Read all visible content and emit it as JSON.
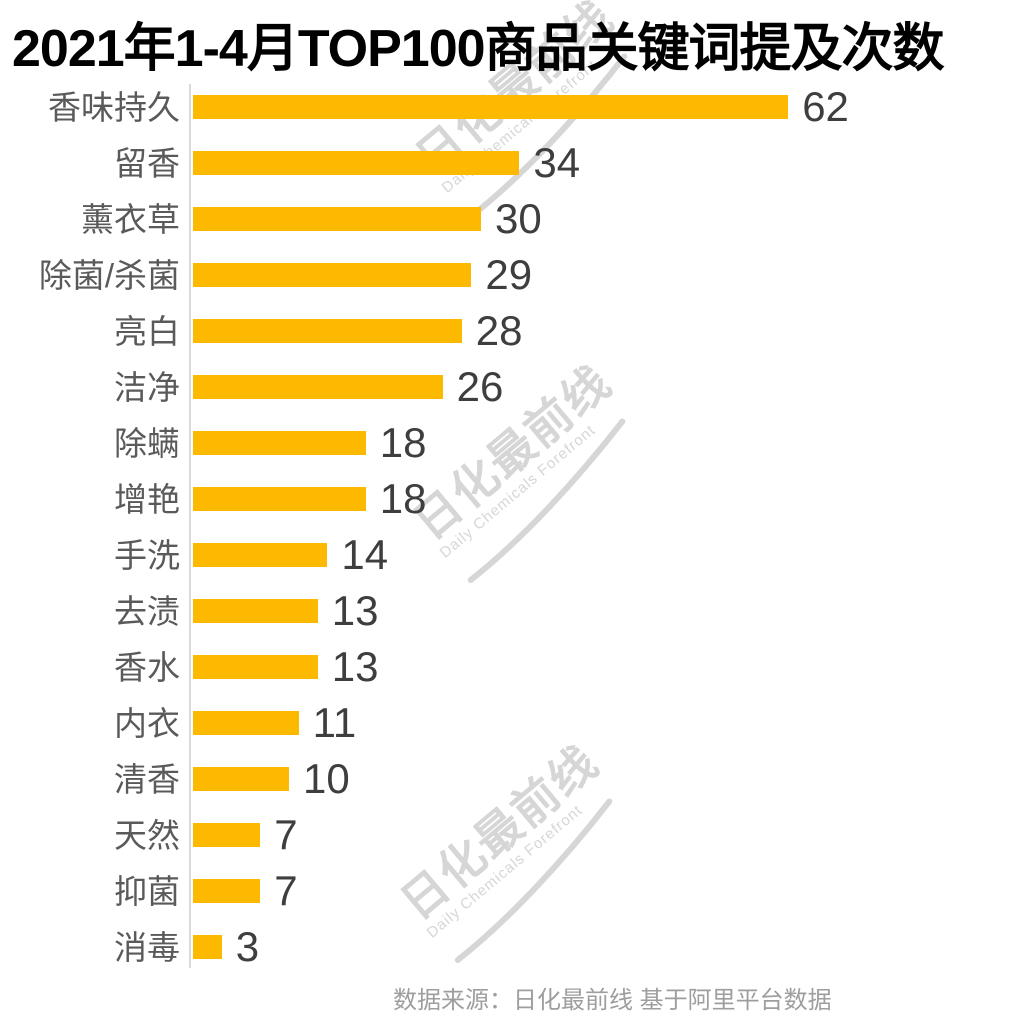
{
  "title": "2021年1-4月TOP100商品关键词提及次数",
  "chart_data": {
    "type": "bar",
    "orientation": "horizontal",
    "title": "2021年1-4月TOP100商品关键词提及次数",
    "categories": [
      "香味持久",
      "留香",
      "薰衣草",
      "除菌/杀菌",
      "亮白",
      "洁净",
      "除螨",
      "增艳",
      "手洗",
      "去渍",
      "香水",
      "内衣",
      "清香",
      "天然",
      "抑菌",
      "消毒"
    ],
    "values": [
      62,
      34,
      30,
      29,
      28,
      26,
      18,
      18,
      14,
      13,
      13,
      11,
      10,
      7,
      7,
      3
    ],
    "value_labels_shown": true,
    "xlim": [
      0,
      64
    ],
    "grid": false,
    "legend": false,
    "bar_color": "#FCB900",
    "axis_line_color": "#D9D9D9"
  },
  "watermark": {
    "line1": "日化最前线",
    "line2": "Daily Chemicals Forefront"
  },
  "footer": {
    "source_label": "数据来源：日化最前线 基于阿里平台数据"
  },
  "colors": {
    "bar": "#FCB900",
    "category_label": "#5A5A5A",
    "value_label": "#3E3E3E",
    "title": "#000000",
    "footer": "#9E9E9E",
    "watermark": "#D6D6D6"
  }
}
